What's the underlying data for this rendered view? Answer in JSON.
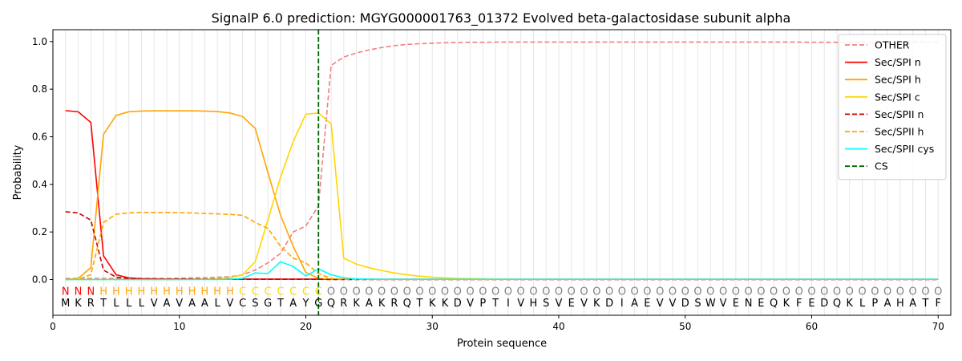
{
  "chart_data": {
    "type": "line",
    "title": "SignalP 6.0 prediction: MGYG000001763_01372 Evolved beta-galactosidase subunit alpha",
    "xlabel": "Protein sequence",
    "ylabel": "Probability",
    "xlim": [
      0,
      71
    ],
    "ylim": [
      -0.15,
      1.05
    ],
    "x_ticks": [
      0,
      10,
      20,
      30,
      40,
      50,
      60,
      70
    ],
    "y_ticks": [
      0.0,
      0.2,
      0.4,
      0.6,
      0.8,
      1.0
    ],
    "x_tick_labels": [
      "0",
      "10",
      "20",
      "30",
      "40",
      "50",
      "60",
      "70"
    ],
    "y_tick_labels": [
      "0.0",
      "0.2",
      "0.4",
      "0.6",
      "0.8",
      "1.0"
    ],
    "grid": "vertical lines at each residue",
    "legend_position": "top-right",
    "sequence": [
      "M",
      "K",
      "R",
      "T",
      "L",
      "L",
      "L",
      "V",
      "A",
      "V",
      "A",
      "A",
      "L",
      "V",
      "C",
      "S",
      "G",
      "T",
      "A",
      "Y",
      "G",
      "Q",
      "R",
      "K",
      "A",
      "K",
      "R",
      "Q",
      "T",
      "K",
      "K",
      "D",
      "V",
      "P",
      "T",
      "I",
      "V",
      "H",
      "S",
      "V",
      "E",
      "V",
      "K",
      "D",
      "I",
      "A",
      "E",
      "V",
      "V",
      "D",
      "S",
      "W",
      "V",
      "E",
      "N",
      "E",
      "Q",
      "K",
      "F",
      "E",
      "D",
      "Q",
      "K",
      "L",
      "P",
      "A",
      "H",
      "A",
      "T",
      "F"
    ],
    "annotation": [
      "N",
      "N",
      "N",
      "H",
      "H",
      "H",
      "H",
      "H",
      "H",
      "H",
      "H",
      "H",
      "H",
      "H",
      "C",
      "C",
      "C",
      "C",
      "C",
      "C",
      "C",
      "O",
      "O",
      "O",
      "O",
      "O",
      "O",
      "O",
      "O",
      "O",
      "O",
      "O",
      "O",
      "O",
      "O",
      "O",
      "O",
      "O",
      "O",
      "O",
      "O",
      "O",
      "O",
      "O",
      "O",
      "O",
      "O",
      "O",
      "O",
      "O",
      "O",
      "O",
      "O",
      "O",
      "O",
      "O",
      "O",
      "O",
      "O",
      "O",
      "O",
      "O",
      "O",
      "O",
      "O",
      "O",
      "O",
      "O",
      "O",
      "O"
    ],
    "annotation_colors": {
      "N": "#ff0000",
      "H": "#ffa500",
      "C": "#ffd700",
      "O": "#808080"
    },
    "cs_position": 21,
    "series": [
      {
        "name": "OTHER",
        "color": "#f08080",
        "dash": "dashed",
        "values": [
          0.005,
          0.005,
          0.005,
          0.005,
          0.005,
          0.005,
          0.005,
          0.005,
          0.005,
          0.006,
          0.007,
          0.008,
          0.01,
          0.012,
          0.02,
          0.04,
          0.07,
          0.11,
          0.2,
          0.225,
          0.31,
          0.9,
          0.935,
          0.952,
          0.965,
          0.975,
          0.983,
          0.988,
          0.991,
          0.993,
          0.995,
          0.996,
          0.997,
          0.997,
          0.998,
          0.998,
          0.998,
          0.998,
          0.998,
          0.998,
          0.998,
          0.998,
          0.998,
          0.998,
          0.998,
          0.998,
          0.998,
          0.998,
          0.998,
          0.998,
          0.998,
          0.998,
          0.998,
          0.998,
          0.998,
          0.998,
          0.998,
          0.998,
          0.998,
          0.997,
          0.997,
          0.997,
          0.996,
          0.996,
          0.996,
          0.997,
          0.997,
          0.998,
          0.998,
          0.998
        ]
      },
      {
        "name": "Sec/SPI n",
        "color": "#ff0000",
        "dash": "solid",
        "values": [
          0.71,
          0.705,
          0.66,
          0.1,
          0.02,
          0.007,
          0.004,
          0.003,
          0.002,
          0.002,
          0.002,
          0.002,
          0.002,
          0.002,
          0.002,
          0.002,
          0.002,
          0.002,
          0.002,
          0.002,
          0.002,
          0.001,
          0.001,
          0.001,
          0.001,
          0.001,
          0.001,
          0.001,
          0.001,
          0.001,
          0.001,
          0.001,
          0.001,
          0.001,
          0.001,
          0.001,
          0.001,
          0.001,
          0.001,
          0.001,
          0.001,
          0.001,
          0.001,
          0.001,
          0.001,
          0.001,
          0.001,
          0.001,
          0.001,
          0.001,
          0.001,
          0.001,
          0.001,
          0.001,
          0.001,
          0.001,
          0.001,
          0.001,
          0.001,
          0.001,
          0.001,
          0.001,
          0.001,
          0.001,
          0.001,
          0.001,
          0.001,
          0.001,
          0.001,
          0.001
        ]
      },
      {
        "name": "Sec/SPI h",
        "color": "#ffa500",
        "dash": "solid",
        "values": [
          0.0,
          0.005,
          0.05,
          0.61,
          0.69,
          0.705,
          0.708,
          0.709,
          0.709,
          0.709,
          0.709,
          0.708,
          0.706,
          0.7,
          0.685,
          0.635,
          0.45,
          0.27,
          0.14,
          0.03,
          0.005,
          0.002,
          0.001,
          0.001,
          0.001,
          0.001,
          0.001,
          0.001,
          0.001,
          0.001,
          0.001,
          0.001,
          0.001,
          0.001,
          0.001,
          0.001,
          0.001,
          0.001,
          0.001,
          0.001,
          0.001,
          0.001,
          0.001,
          0.001,
          0.001,
          0.001,
          0.001,
          0.001,
          0.001,
          0.001,
          0.001,
          0.001,
          0.001,
          0.001,
          0.001,
          0.001,
          0.001,
          0.001,
          0.001,
          0.001,
          0.001,
          0.001,
          0.001,
          0.001,
          0.001,
          0.001,
          0.001,
          0.001,
          0.001,
          0.001
        ]
      },
      {
        "name": "Sec/SPI c",
        "color": "#ffd700",
        "dash": "solid",
        "values": [
          0.0,
          0.0,
          0.0,
          0.0,
          0.0,
          0.0,
          0.0,
          0.0,
          0.0,
          0.0,
          0.001,
          0.002,
          0.004,
          0.008,
          0.02,
          0.075,
          0.25,
          0.43,
          0.58,
          0.695,
          0.7,
          0.655,
          0.09,
          0.065,
          0.05,
          0.038,
          0.028,
          0.02,
          0.014,
          0.01,
          0.007,
          0.005,
          0.004,
          0.003,
          0.002,
          0.002,
          0.001,
          0.001,
          0.001,
          0.001,
          0.001,
          0.001,
          0.001,
          0.001,
          0.001,
          0.001,
          0.001,
          0.001,
          0.001,
          0.001,
          0.001,
          0.001,
          0.001,
          0.001,
          0.001,
          0.001,
          0.001,
          0.001,
          0.001,
          0.001,
          0.001,
          0.001,
          0.001,
          0.001,
          0.001,
          0.001,
          0.001,
          0.001,
          0.001,
          0.001
        ]
      },
      {
        "name": "Sec/SPII n",
        "color": "#cc0000",
        "dash": "dashed",
        "values": [
          0.285,
          0.28,
          0.25,
          0.04,
          0.01,
          0.004,
          0.002,
          0.001,
          0.001,
          0.001,
          0.001,
          0.001,
          0.001,
          0.001,
          0.001,
          0.001,
          0.001,
          0.001,
          0.001,
          0.001,
          0.001,
          0.0,
          0.0,
          0.0,
          0.0,
          0.0,
          0.0,
          0.0,
          0.0,
          0.0,
          0.0,
          0.0,
          0.0,
          0.0,
          0.0,
          0.0,
          0.0,
          0.0,
          0.0,
          0.0,
          0.0,
          0.0,
          0.0,
          0.0,
          0.0,
          0.0,
          0.0,
          0.0,
          0.0,
          0.0,
          0.0,
          0.0,
          0.0,
          0.0,
          0.0,
          0.0,
          0.0,
          0.0,
          0.0,
          0.0,
          0.0,
          0.0,
          0.0,
          0.0,
          0.0,
          0.0,
          0.0,
          0.0,
          0.0,
          0.0
        ]
      },
      {
        "name": "Sec/SPII h",
        "color": "#ffa500",
        "dash": "dashed",
        "values": [
          0.0,
          0.002,
          0.02,
          0.24,
          0.275,
          0.28,
          0.282,
          0.282,
          0.282,
          0.281,
          0.28,
          0.278,
          0.276,
          0.274,
          0.27,
          0.24,
          0.215,
          0.14,
          0.09,
          0.07,
          0.025,
          0.005,
          0.002,
          0.001,
          0.001,
          0.001,
          0.001,
          0.001,
          0.001,
          0.001,
          0.001,
          0.001,
          0.001,
          0.001,
          0.001,
          0.001,
          0.001,
          0.001,
          0.001,
          0.001,
          0.001,
          0.001,
          0.001,
          0.001,
          0.001,
          0.001,
          0.001,
          0.001,
          0.001,
          0.001,
          0.001,
          0.001,
          0.001,
          0.001,
          0.001,
          0.001,
          0.001,
          0.001,
          0.001,
          0.001,
          0.001,
          0.001,
          0.001,
          0.001,
          0.001,
          0.001,
          0.001,
          0.001,
          0.001,
          0.001
        ]
      },
      {
        "name": "Sec/SPII cys",
        "color": "#00ffff",
        "dash": "solid",
        "values": [
          0.0,
          0.0,
          0.0,
          0.0,
          0.0,
          0.0,
          0.0,
          0.0,
          0.0,
          0.0,
          0.0,
          0.0,
          0.0,
          0.002,
          0.005,
          0.028,
          0.025,
          0.075,
          0.055,
          0.015,
          0.045,
          0.02,
          0.008,
          0.003,
          0.002,
          0.001,
          0.001,
          0.001,
          0.001,
          0.001,
          0.001,
          0.001,
          0.001,
          0.001,
          0.001,
          0.001,
          0.001,
          0.001,
          0.001,
          0.001,
          0.001,
          0.001,
          0.001,
          0.001,
          0.001,
          0.001,
          0.001,
          0.001,
          0.001,
          0.001,
          0.001,
          0.001,
          0.001,
          0.001,
          0.001,
          0.001,
          0.001,
          0.001,
          0.001,
          0.001,
          0.001,
          0.001,
          0.001,
          0.001,
          0.001,
          0.001,
          0.001,
          0.001,
          0.001,
          0.001
        ]
      }
    ],
    "cs_legend": {
      "name": "CS",
      "color": "#006400",
      "dash": "dashed"
    }
  }
}
